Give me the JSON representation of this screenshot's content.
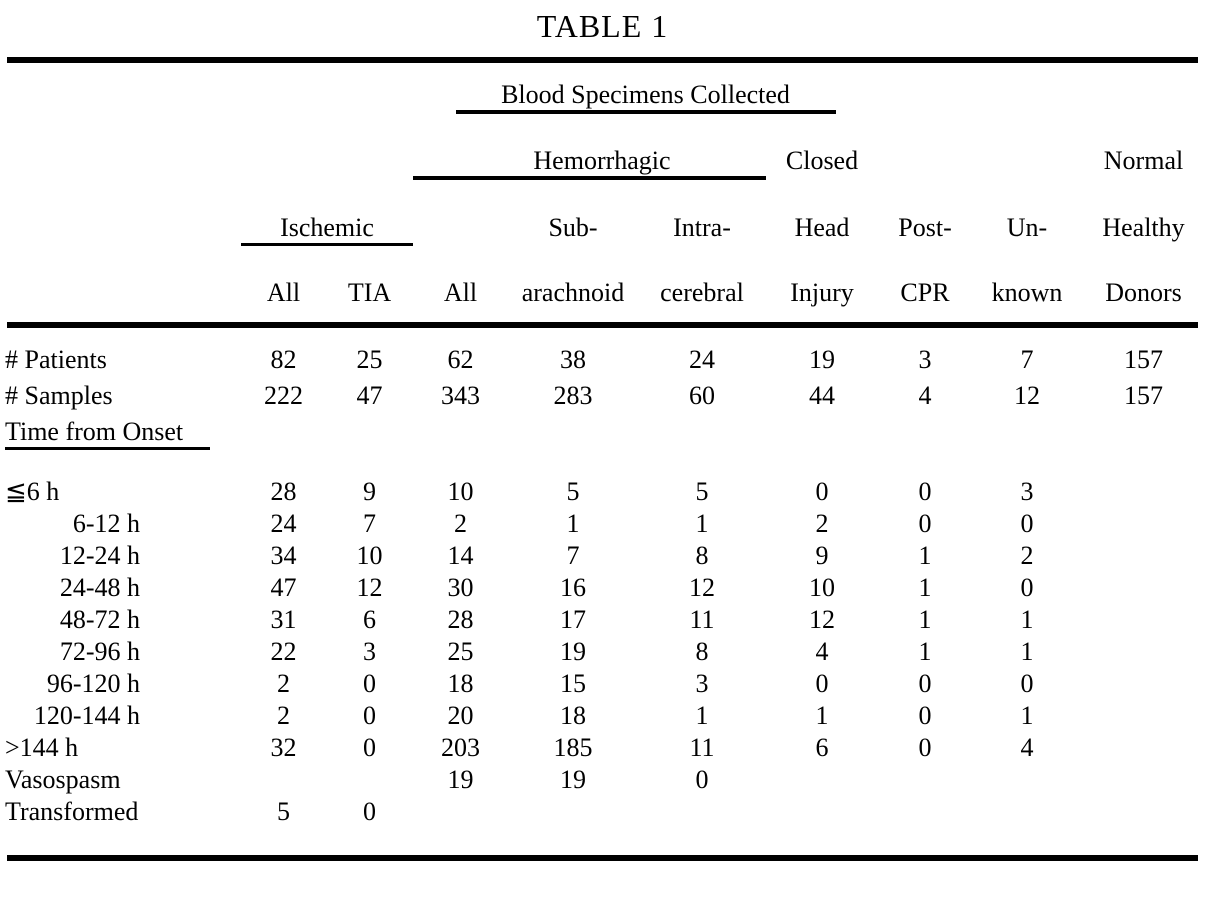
{
  "title": "TABLE 1",
  "header": {
    "blood_specimens": "Blood Specimens Collected",
    "hemorrhagic": "Hemorrhagic",
    "closed": "Closed",
    "normal": "Normal",
    "ischemic": "Ischemic",
    "sub": "Sub-",
    "intra": "Intra-",
    "head": "Head",
    "post": "Post-",
    "un": "Un-",
    "healthy": "Healthy",
    "cols": [
      "All",
      "TIA",
      "All",
      "arachnoid",
      "cerebral",
      "Injury",
      "CPR",
      "known",
      "Donors"
    ]
  },
  "rows_top": [
    {
      "label": "# Patients",
      "values": [
        "82",
        "25",
        "62",
        "38",
        "24",
        "19",
        "3",
        "7",
        "157"
      ]
    },
    {
      "label": "# Samples",
      "values": [
        "222",
        "47",
        "343",
        "283",
        "60",
        "44",
        "4",
        "12",
        "157"
      ]
    }
  ],
  "section_label": "Time from Onset",
  "rows_time": [
    {
      "label": "≦6 h",
      "values": [
        "28",
        "9",
        "10",
        "5",
        "5",
        "0",
        "0",
        "3",
        ""
      ]
    },
    {
      "label": "6-12 h",
      "values": [
        "24",
        "7",
        "2",
        "1",
        "1",
        "2",
        "0",
        "0",
        ""
      ]
    },
    {
      "label": "12-24 h",
      "values": [
        "34",
        "10",
        "14",
        "7",
        "8",
        "9",
        "1",
        "2",
        ""
      ]
    },
    {
      "label": "24-48 h",
      "values": [
        "47",
        "12",
        "30",
        "16",
        "12",
        "10",
        "1",
        "0",
        ""
      ]
    },
    {
      "label": "48-72 h",
      "values": [
        "31",
        "6",
        "28",
        "17",
        "11",
        "12",
        "1",
        "1",
        ""
      ]
    },
    {
      "label": "72-96 h",
      "values": [
        "22",
        "3",
        "25",
        "19",
        "8",
        "4",
        "1",
        "1",
        ""
      ]
    },
    {
      "label": "96-120 h",
      "values": [
        "2",
        "0",
        "18",
        "15",
        "3",
        "0",
        "0",
        "0",
        ""
      ]
    },
    {
      "label": "120-144 h",
      "values": [
        "2",
        "0",
        "20",
        "18",
        "1",
        "1",
        "0",
        "1",
        ""
      ]
    },
    {
      "label": ">144 h",
      "values": [
        "32",
        "0",
        "203",
        "185",
        "11",
        "6",
        "0",
        "4",
        ""
      ]
    },
    {
      "label": "Vasospasm",
      "values": [
        "",
        "",
        "19",
        "19",
        "0",
        "",
        "",
        "",
        ""
      ]
    },
    {
      "label": "Transformed",
      "values": [
        "5",
        "0",
        "",
        "",
        "",
        "",
        "",
        "",
        ""
      ]
    }
  ]
}
